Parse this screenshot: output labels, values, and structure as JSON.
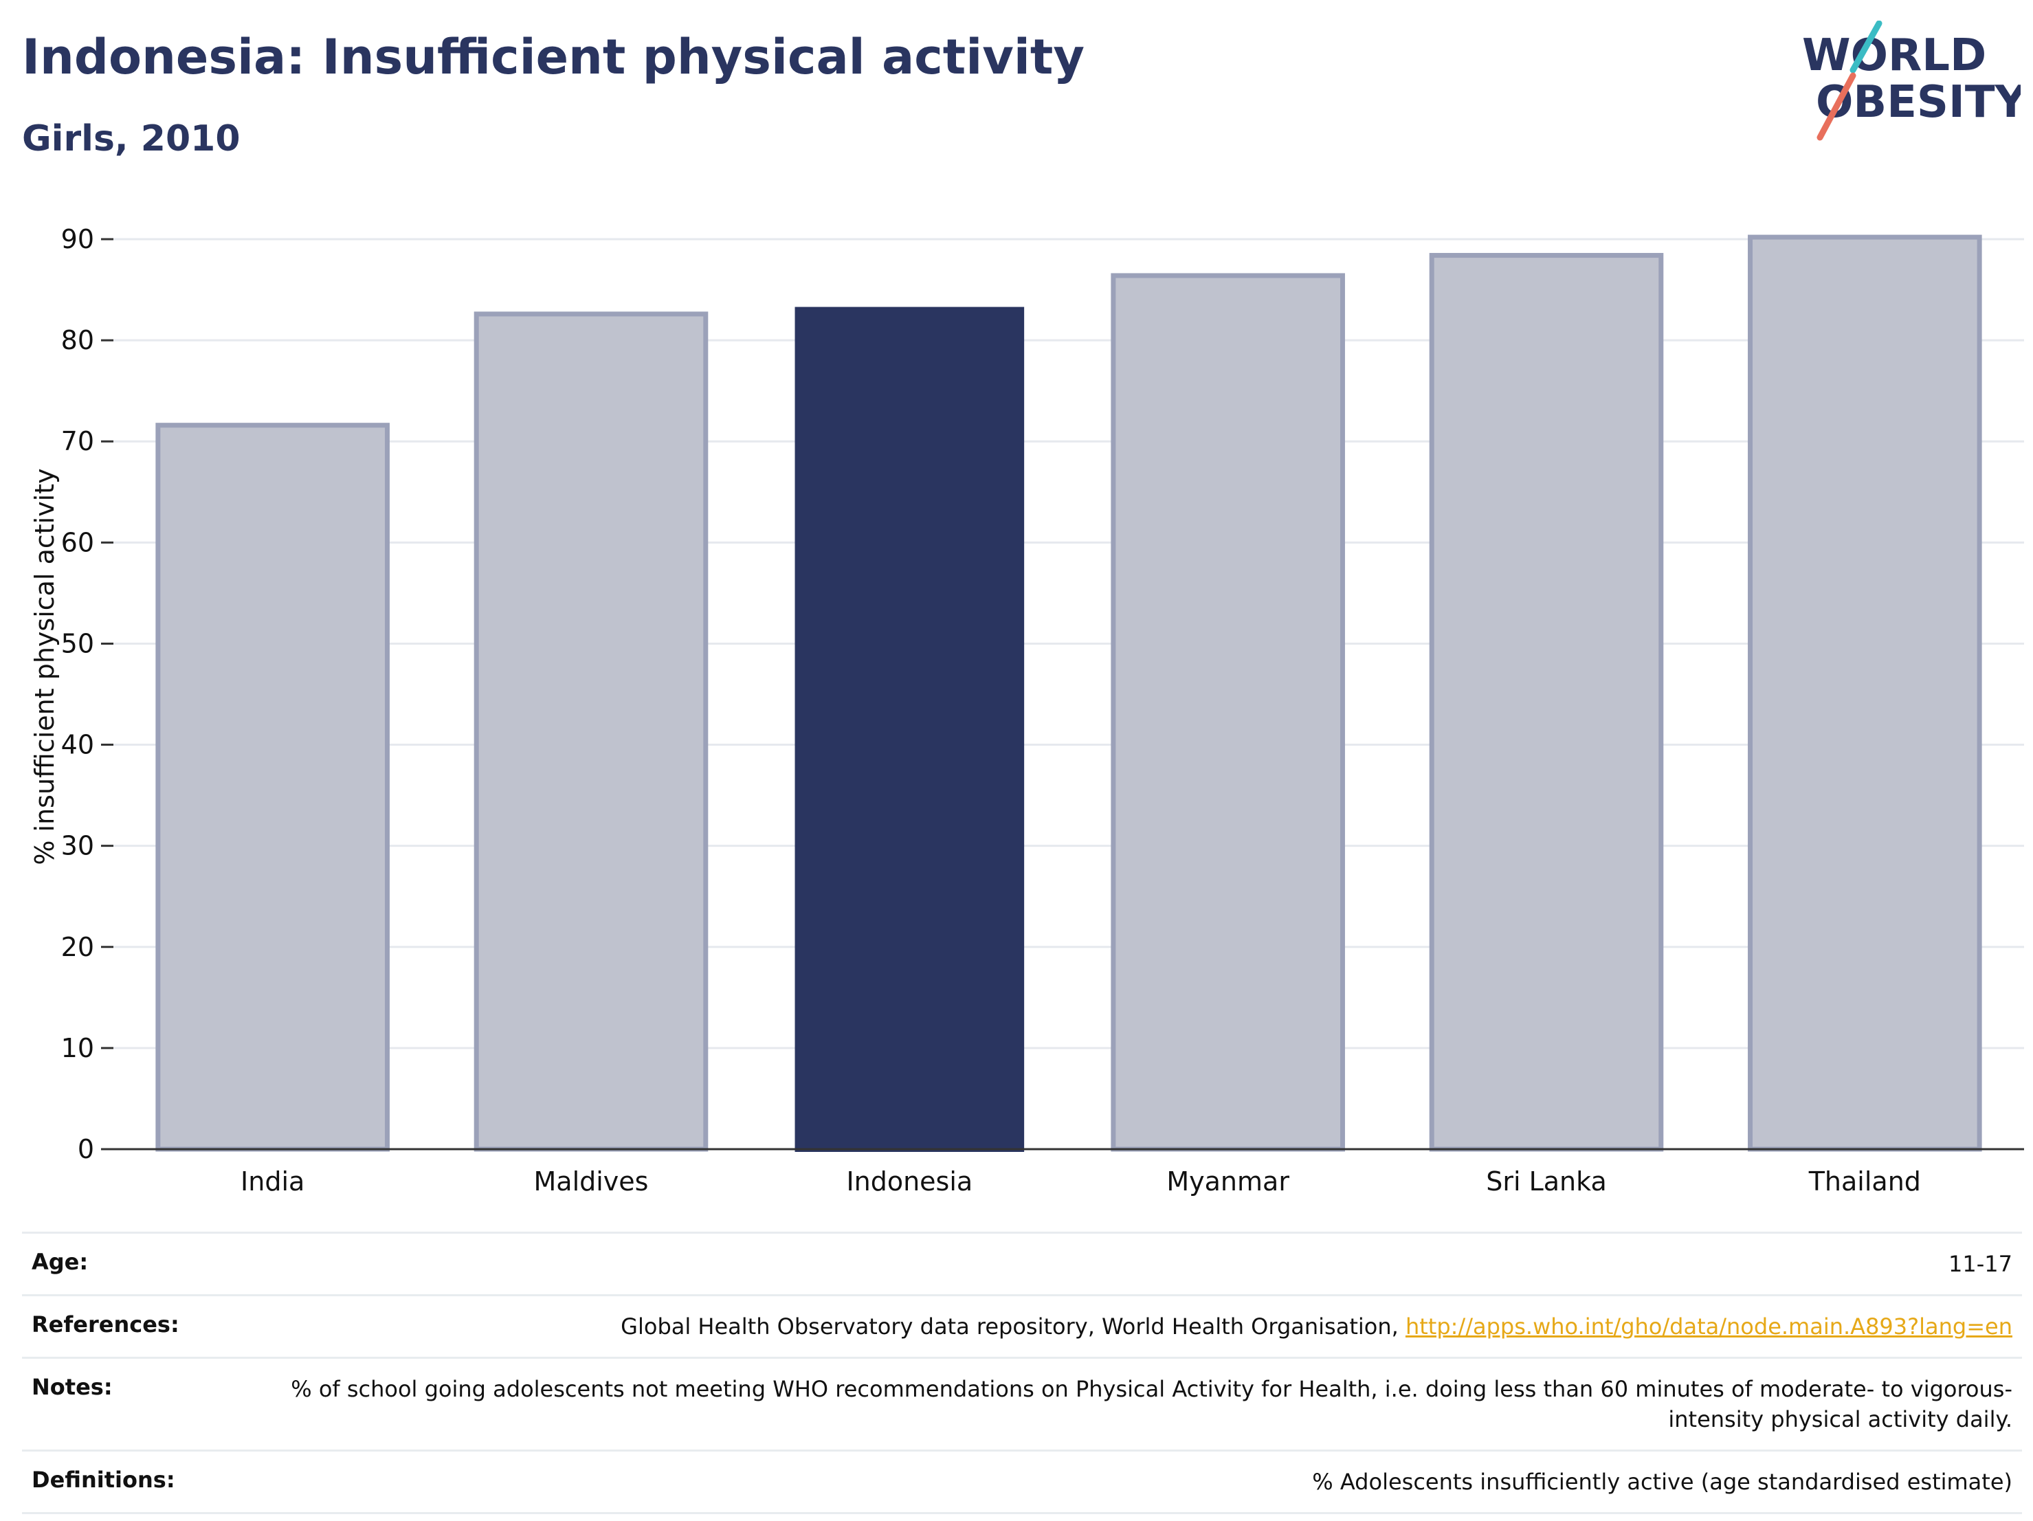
{
  "header": {
    "title": "Indonesia: Insufficient physical activity",
    "subtitle": "Girls, 2010"
  },
  "logo": {
    "line1": "WORLD",
    "line2": "OBESITY",
    "colors": {
      "text": "#2a3560",
      "teal": "#3bbcc4",
      "coral": "#e86f5c"
    }
  },
  "chart_data": {
    "type": "bar",
    "title": "Indonesia: Insufficient physical activity",
    "subtitle": "Girls, 2010",
    "xlabel": "",
    "ylabel": "% insufficient physical activity",
    "categories": [
      "India",
      "Maldives",
      "Indonesia",
      "Myanmar",
      "Sri Lanka",
      "Thailand"
    ],
    "values": [
      71.6,
      82.6,
      83.3,
      86.4,
      88.4,
      90.2
    ],
    "highlight": "Indonesia",
    "ylim": [
      0,
      90
    ],
    "yticks": [
      0,
      10,
      20,
      30,
      40,
      50,
      60,
      70,
      80,
      90
    ],
    "grid": true,
    "colors": {
      "highlight": "#2a3560",
      "other_fill": "#bfc2ce",
      "other_edge": "#9ba1b9",
      "grid": "#e6e9ee",
      "axis": "#333333"
    }
  },
  "info": {
    "age_label": "Age:",
    "age_value": "11-17",
    "references_label": "References:",
    "references_text": "Global Health Observatory data repository, World Health Organisation, ",
    "references_link": "http://apps.who.int/gho/data/node.main.A893?lang=en",
    "notes_label": "Notes:",
    "notes_text": "% of school going adolescents not meeting WHO recommendations on Physical Activity for Health, i.e. doing less than 60 minutes of moderate- to vigorous-intensity physical activity daily.",
    "definitions_label": "Definitions:",
    "definitions_text": "% Adolescents insufficiently active (age standardised estimate)"
  }
}
